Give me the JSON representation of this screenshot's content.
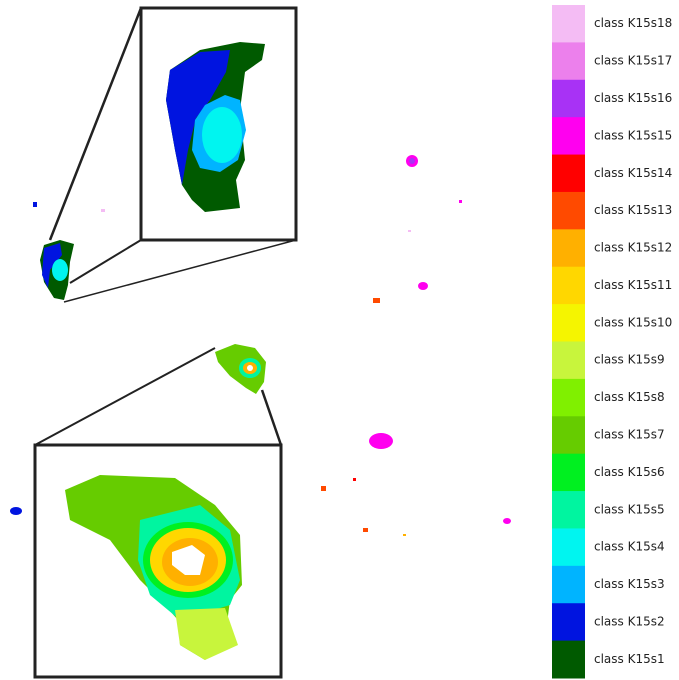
{
  "legend": {
    "items": [
      {
        "label": "class K15s18",
        "color": "#f4bcf4"
      },
      {
        "label": "class K15s17",
        "color": "#ec80ec"
      },
      {
        "label": "class K15s16",
        "color": "#a832f5"
      },
      {
        "label": "class K15s15",
        "color": "#ff00ef"
      },
      {
        "label": "class K15s14",
        "color": "#ff0000"
      },
      {
        "label": "class K15s13",
        "color": "#ff4a00"
      },
      {
        "label": "class K15s12",
        "color": "#ffb000"
      },
      {
        "label": "class K15s11",
        "color": "#ffd700"
      },
      {
        "label": "class K15s10",
        "color": "#f5f500"
      },
      {
        "label": "class K15s9",
        "color": "#c8f53c"
      },
      {
        "label": "class K15s8",
        "color": "#80f000"
      },
      {
        "label": "class K15s7",
        "color": "#66cc00"
      },
      {
        "label": "class K15s6",
        "color": "#00f020"
      },
      {
        "label": "class K15s5",
        "color": "#00f5a0"
      },
      {
        "label": "class K15s4",
        "color": "#00f5f0"
      },
      {
        "label": "class K15s3",
        "color": "#00b4ff"
      },
      {
        "label": "class K15s2",
        "color": "#0014e0"
      },
      {
        "label": "class K15s1",
        "color": "#005a00"
      }
    ]
  }
}
